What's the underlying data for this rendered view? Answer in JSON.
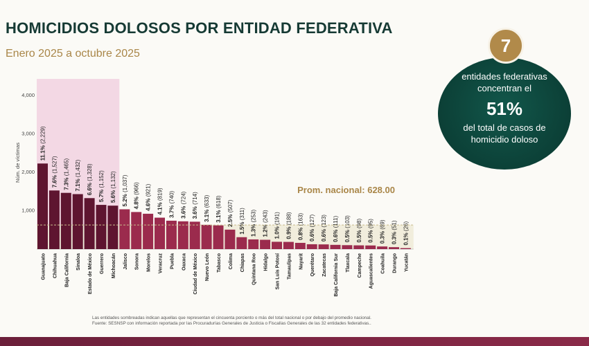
{
  "header": {
    "title": "HOMICIDIOS DOLOSOS POR ENTIDAD FEDERATIVA",
    "subtitle": "Enero 2025 a octubre 2025"
  },
  "callout": {
    "number": "7",
    "line1": "entidades federativas",
    "line2": "concentran el",
    "percent": "51%",
    "line3": "del total de casos de",
    "line4": "homicidio doloso"
  },
  "footer": {
    "note": "Las entidades sombreadas indican aquellas que representan el cincuenta porciento o más del total nacional o por debajo del promedio nacional.",
    "source": "Fuente: SESNSP con información reportada por las Procuradurías Generales de Justicia o Fiscalías Generales de las 32 entidades federativas.."
  },
  "chart_data": {
    "type": "bar",
    "title": "",
    "xlabel": "",
    "ylabel": "Núm. de víctimas",
    "ylim": [
      0,
      4000
    ],
    "yticks": [
      {
        "value": 1000,
        "label": "1,000"
      },
      {
        "value": 2000,
        "label": "2,000"
      },
      {
        "value": 3000,
        "label": "3,000"
      },
      {
        "value": 4000,
        "label": "4,000"
      }
    ],
    "average": {
      "value": 628,
      "label": "Prom. nacional: 628.00"
    },
    "grid": false,
    "colors": {
      "top_group": "#5e1530",
      "others": "#9b2b4d",
      "top_band": "#f3d8e4",
      "avg_band": "#f1eddc",
      "avg_line": "#c8bc8c",
      "avg_text": "#a98648"
    },
    "top_group_count": 7,
    "categories": [
      "Guanajuato",
      "Chihuahua",
      "Baja California",
      "Sinaloa",
      "Estado de México",
      "Guerrero",
      "Michoacán",
      "Jalisco",
      "Sonora",
      "Morelos",
      "Veracruz",
      "Puebla",
      "Oaxaca",
      "Ciudad de México",
      "Nuevo León",
      "Tabasco",
      "Colima",
      "Chiapas",
      "Quintana Roo",
      "Hidalgo",
      "San Luis Potosí",
      "Tamaulipas",
      "Nayarit",
      "Querétaro",
      "Zacatecas",
      "Baja California Sur",
      "Tlaxcala",
      "Campeche",
      "Aguascalientes",
      "Coahuila",
      "Durango",
      "Yucatán"
    ],
    "values": [
      2229,
      1527,
      1465,
      1432,
      1328,
      1152,
      1132,
      1037,
      966,
      921,
      819,
      740,
      724,
      714,
      633,
      618,
      507,
      311,
      253,
      243,
      191,
      188,
      163,
      127,
      123,
      111,
      103,
      98,
      95,
      69,
      51,
      26
    ],
    "percents": [
      "11.1%",
      "7.6%",
      "7.3%",
      "7.1%",
      "6.6%",
      "5.7%",
      "5.6%",
      "5.2%",
      "4.8%",
      "4.6%",
      "4.1%",
      "3.7%",
      "3.6%",
      "3.6%",
      "3.1%",
      "3.1%",
      "2.5%",
      "1.5%",
      "1.3%",
      "1.2%",
      "1.0%",
      "0.9%",
      "0.8%",
      "0.6%",
      "0.6%",
      "0.6%",
      "0.5%",
      "0.5%",
      "0.5%",
      "0.3%",
      "0.3%",
      "0.1%"
    ],
    "value_labels": [
      "(2,229)",
      "(1,527)",
      "(1,465)",
      "(1,432)",
      "(1,328)",
      "(1,152)",
      "(1,132)",
      "(1,037)",
      "(966)",
      "(921)",
      "(819)",
      "(740)",
      "(724)",
      "(714)",
      "(633)",
      "(618)",
      "(507)",
      "(311)",
      "(253)",
      "(243)",
      "(191)",
      "(188)",
      "(163)",
      "(127)",
      "(123)",
      "(111)",
      "(103)",
      "(98)",
      "(95)",
      "(69)",
      "(51)",
      "(26)"
    ]
  }
}
